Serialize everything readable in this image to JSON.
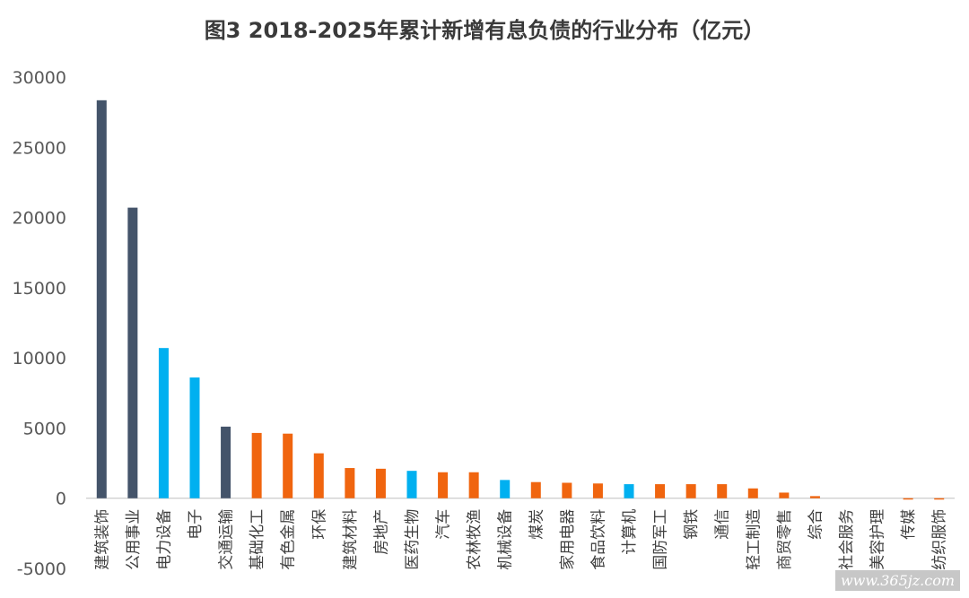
{
  "chart_data": {
    "type": "bar",
    "title": "图3  2018-2025年累计新增有息负债的行业分布（亿元）",
    "xlabel": "",
    "ylabel": "",
    "ylim": [
      -5000,
      30000
    ],
    "yticks": [
      30000,
      25000,
      20000,
      15000,
      10000,
      5000,
      0,
      -5000
    ],
    "grid": false,
    "legend": "none",
    "colors": {
      "dark": "#44546A",
      "blue": "#00B0F0",
      "orange": "#F0650F"
    },
    "categories": [
      "建筑装饰",
      "公用事业",
      "电力设备",
      "电子",
      "交通运输",
      "基础化工",
      "有色金属",
      "环保",
      "建筑材料",
      "房地产",
      "医药生物",
      "汽车",
      "农林牧渔",
      "机械设备",
      "煤炭",
      "家用电器",
      "食品饮料",
      "计算机",
      "国防军工",
      "钢铁",
      "通信",
      "轻工制造",
      "商贸零售",
      "综合",
      "社会服务",
      "美容护理",
      "传媒",
      "纺织服饰"
    ],
    "values": [
      28350,
      20700,
      10700,
      8600,
      5100,
      4650,
      4600,
      3200,
      2150,
      2100,
      1950,
      1850,
      1850,
      1300,
      1150,
      1100,
      1050,
      1000,
      1000,
      1000,
      1000,
      700,
      400,
      150,
      0,
      0,
      -50,
      -80
    ],
    "bar_colors": [
      "dark",
      "dark",
      "blue",
      "blue",
      "dark",
      "orange",
      "orange",
      "orange",
      "orange",
      "orange",
      "blue",
      "orange",
      "orange",
      "blue",
      "orange",
      "orange",
      "orange",
      "blue",
      "orange",
      "orange",
      "orange",
      "orange",
      "orange",
      "orange",
      "orange",
      "orange",
      "orange",
      "orange"
    ]
  },
  "watermark": "www.365jz.com"
}
